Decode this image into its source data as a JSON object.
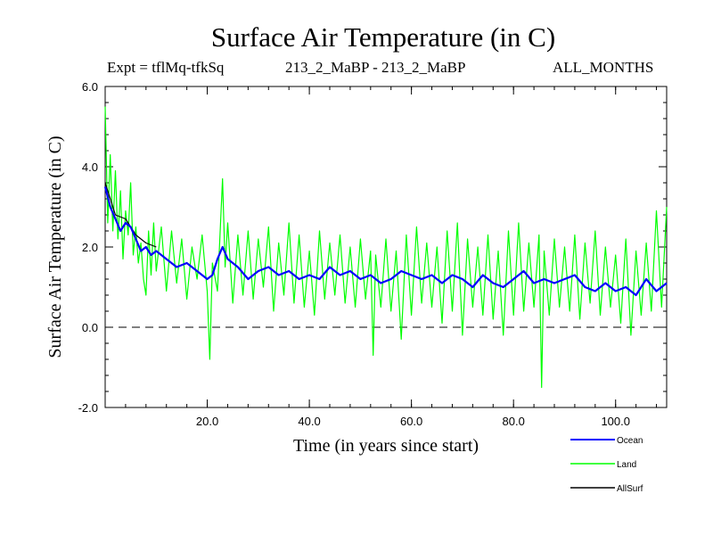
{
  "chart_data": {
    "type": "line",
    "title": "Surface Air Temperature (in C)",
    "subtitle_left": "Expt = tflMq-tfkSq",
    "subtitle_center": "213_2_MaBP - 213_2_MaBP",
    "subtitle_right": "ALL_MONTHS",
    "xlabel": "Time (in years since start)",
    "ylabel": "Surface Air Temperature (in C)",
    "xlim": [
      0,
      110
    ],
    "ylim": [
      -2.0,
      6.0
    ],
    "x_ticks": [
      20,
      40,
      60,
      80,
      100
    ],
    "x_tick_labels": [
      "20.0",
      "40.0",
      "60.0",
      "80.0",
      "100.0"
    ],
    "y_ticks": [
      -2,
      0,
      2,
      4,
      6
    ],
    "y_tick_labels": [
      "-2.0",
      "0.0",
      "2.0",
      "4.0",
      "6.0"
    ],
    "reference_line": 0.0,
    "series": [
      {
        "name": "Land",
        "color": "#00ff00",
        "x": [
          0,
          0.5,
          1,
          1.5,
          2,
          2.5,
          3,
          3.5,
          4,
          4.5,
          5,
          5.5,
          6,
          6.5,
          7,
          7.5,
          8,
          8.5,
          9,
          9.5,
          10,
          11,
          12,
          13,
          14,
          15,
          16,
          17,
          18,
          19,
          20,
          20.5,
          21,
          22,
          23,
          23.5,
          24,
          25,
          26,
          27,
          28,
          29,
          30,
          31,
          32,
          33,
          34,
          35,
          36,
          37,
          38,
          39,
          40,
          41,
          42,
          43,
          44,
          45,
          46,
          47,
          48,
          49,
          50,
          51,
          52,
          52.5,
          53,
          54,
          55,
          56,
          57,
          58,
          59,
          60,
          61,
          62,
          63,
          64,
          65,
          66,
          67,
          68,
          69,
          70,
          71,
          72,
          73,
          74,
          75,
          76,
          77,
          78,
          79,
          80,
          81,
          82,
          83,
          84,
          85,
          85.5,
          86,
          87,
          88,
          89,
          90,
          91,
          92,
          93,
          94,
          95,
          96,
          97,
          98,
          99,
          100,
          101,
          102,
          103,
          104,
          105,
          106,
          107,
          108,
          109,
          110
        ],
        "values": [
          5.5,
          2.6,
          4.3,
          2.4,
          3.9,
          2.2,
          3.4,
          1.7,
          2.9,
          2.3,
          3.6,
          1.8,
          2.5,
          1.6,
          2.1,
          1.2,
          0.8,
          2.4,
          1.3,
          2.6,
          1.4,
          2.5,
          0.9,
          2.4,
          1.1,
          2.2,
          0.7,
          2.0,
          1.2,
          2.3,
          0.9,
          -0.8,
          1.6,
          0.9,
          3.7,
          1.5,
          2.6,
          0.6,
          2.3,
          0.8,
          2.4,
          0.7,
          2.2,
          1.0,
          2.5,
          0.4,
          2.1,
          0.8,
          2.6,
          0.6,
          2.3,
          0.5,
          1.9,
          0.3,
          2.4,
          0.7,
          2.1,
          0.8,
          2.3,
          0.6,
          2.0,
          0.5,
          2.2,
          0.7,
          1.9,
          -0.7,
          1.8,
          0.5,
          2.2,
          0.4,
          1.9,
          -0.3,
          2.3,
          0.3,
          2.5,
          0.6,
          2.1,
          0.5,
          2.0,
          0.1,
          2.4,
          0.4,
          2.6,
          -0.2,
          2.2,
          0.5,
          2.0,
          0.3,
          2.3,
          0.2,
          1.9,
          -0.2,
          2.4,
          0.3,
          2.6,
          0.4,
          2.1,
          0.5,
          2.3,
          -1.5,
          1.9,
          0.3,
          2.2,
          0.5,
          2.0,
          0.4,
          2.3,
          0.2,
          2.1,
          0.6,
          2.4,
          0.3,
          2.0,
          0.5,
          1.8,
          0.1,
          2.2,
          -0.2,
          1.9,
          0.3,
          2.1,
          0.4,
          2.9,
          0.5,
          3.0
        ]
      },
      {
        "name": "Ocean",
        "color": "#0000ff",
        "x": [
          0,
          1,
          2,
          3,
          4,
          5,
          6,
          7,
          8,
          9,
          10,
          12,
          14,
          16,
          18,
          20,
          21,
          22,
          23,
          24,
          26,
          28,
          30,
          32,
          34,
          36,
          38,
          40,
          42,
          44,
          46,
          48,
          50,
          52,
          54,
          56,
          58,
          60,
          62,
          64,
          66,
          68,
          70,
          72,
          74,
          76,
          78,
          80,
          82,
          84,
          86,
          88,
          90,
          92,
          94,
          96,
          98,
          100,
          102,
          104,
          106,
          108,
          110
        ],
        "values": [
          3.5,
          3.0,
          2.7,
          2.4,
          2.6,
          2.5,
          2.2,
          1.9,
          2.0,
          1.8,
          1.9,
          1.7,
          1.5,
          1.6,
          1.4,
          1.2,
          1.3,
          1.7,
          2.0,
          1.7,
          1.5,
          1.2,
          1.4,
          1.5,
          1.3,
          1.4,
          1.2,
          1.3,
          1.2,
          1.5,
          1.3,
          1.4,
          1.2,
          1.3,
          1.1,
          1.2,
          1.4,
          1.3,
          1.2,
          1.3,
          1.1,
          1.3,
          1.2,
          1.0,
          1.3,
          1.1,
          1.0,
          1.2,
          1.4,
          1.1,
          1.2,
          1.1,
          1.2,
          1.3,
          1.0,
          0.9,
          1.1,
          0.9,
          1.0,
          0.8,
          1.2,
          0.9,
          1.1
        ]
      },
      {
        "name": "AllSurf",
        "color": "#000000",
        "x": [
          0,
          2,
          4,
          6,
          8,
          10
        ],
        "values": [
          3.6,
          2.8,
          2.7,
          2.3,
          2.1,
          2.0
        ]
      }
    ],
    "legend_position": "bottom-right"
  }
}
